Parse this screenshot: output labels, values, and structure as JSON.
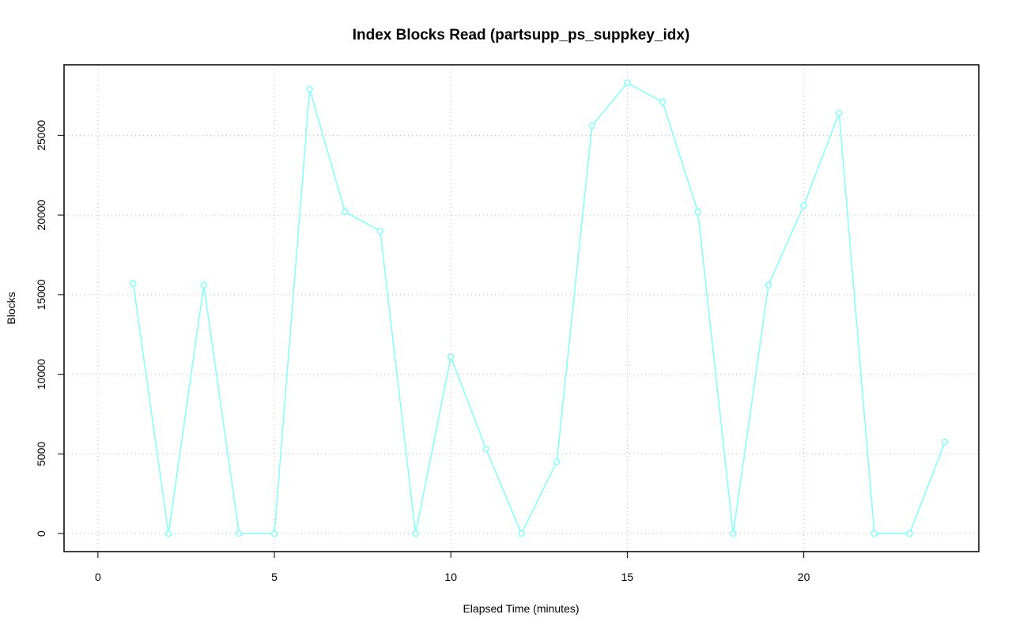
{
  "chart_data": {
    "type": "line",
    "title": "Index Blocks Read (partsupp_ps_suppkey_idx)",
    "x_label": "Elapsed Time (minutes)",
    "y_label": "Blocks",
    "x": [
      1,
      2,
      3,
      4,
      5,
      6,
      7,
      8,
      9,
      10,
      11,
      12,
      13,
      14,
      15,
      16,
      17,
      18,
      19,
      20,
      21,
      22,
      23,
      24
    ],
    "series": [
      {
        "name": "partsupp_ps_suppkey_idx",
        "color": "#80ffff",
        "values": [
          15700,
          0,
          15600,
          0,
          0,
          27900,
          20200,
          19000,
          0,
          11100,
          5300,
          0,
          4500,
          25600,
          28300,
          27100,
          20200,
          0,
          15600,
          20600,
          26400,
          0,
          0,
          5750
        ]
      }
    ],
    "xlim": [
      -0.96,
      24.96
    ],
    "ylim": [
      -1132,
      29432
    ],
    "xticks": [
      0,
      5,
      10,
      15,
      20
    ],
    "yticks": [
      0,
      5000,
      10000,
      15000,
      20000,
      25000
    ],
    "grid": true
  }
}
